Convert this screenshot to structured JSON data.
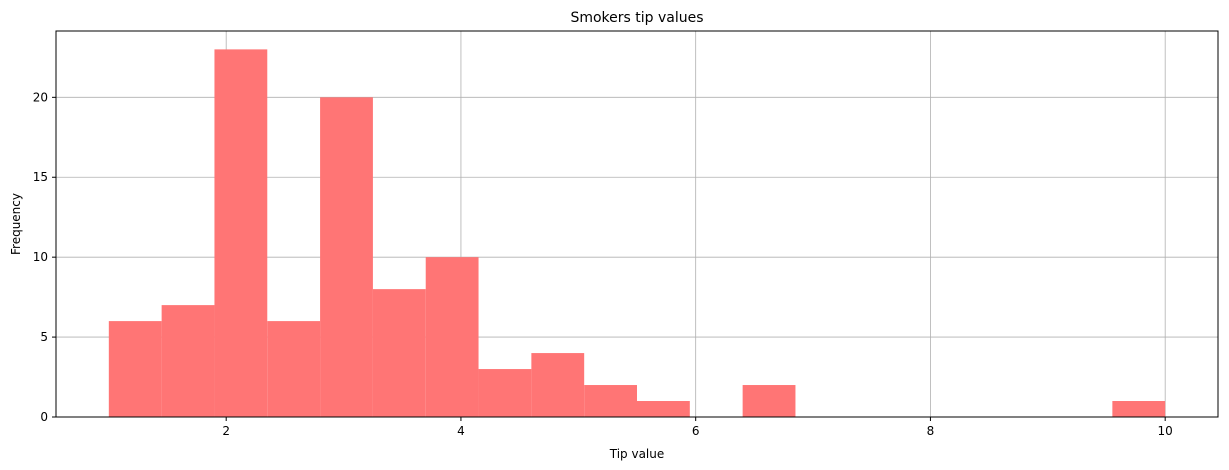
{
  "chart_data": {
    "type": "bar",
    "title": "Smokers tip values",
    "xlabel": "Tip value",
    "ylabel": "Frequency",
    "bin_edges": [
      1.0,
      1.45,
      1.9,
      2.35,
      2.8,
      3.25,
      3.7,
      4.15,
      4.6,
      5.05,
      5.5,
      5.95,
      6.4,
      6.85,
      7.3,
      7.75,
      8.2,
      8.65,
      9.1,
      9.55,
      10.0
    ],
    "counts": [
      6,
      7,
      23,
      6,
      20,
      8,
      10,
      3,
      4,
      2,
      1,
      0,
      2,
      0,
      0,
      0,
      0,
      0,
      0,
      1
    ],
    "xlim": [
      0.55,
      10.45
    ],
    "ylim": [
      0,
      24.15
    ],
    "xticks": [
      2,
      4,
      6,
      8,
      10
    ],
    "yticks": [
      0,
      5,
      10,
      15,
      20
    ],
    "grid": true,
    "bar_color": "#ff7575"
  }
}
